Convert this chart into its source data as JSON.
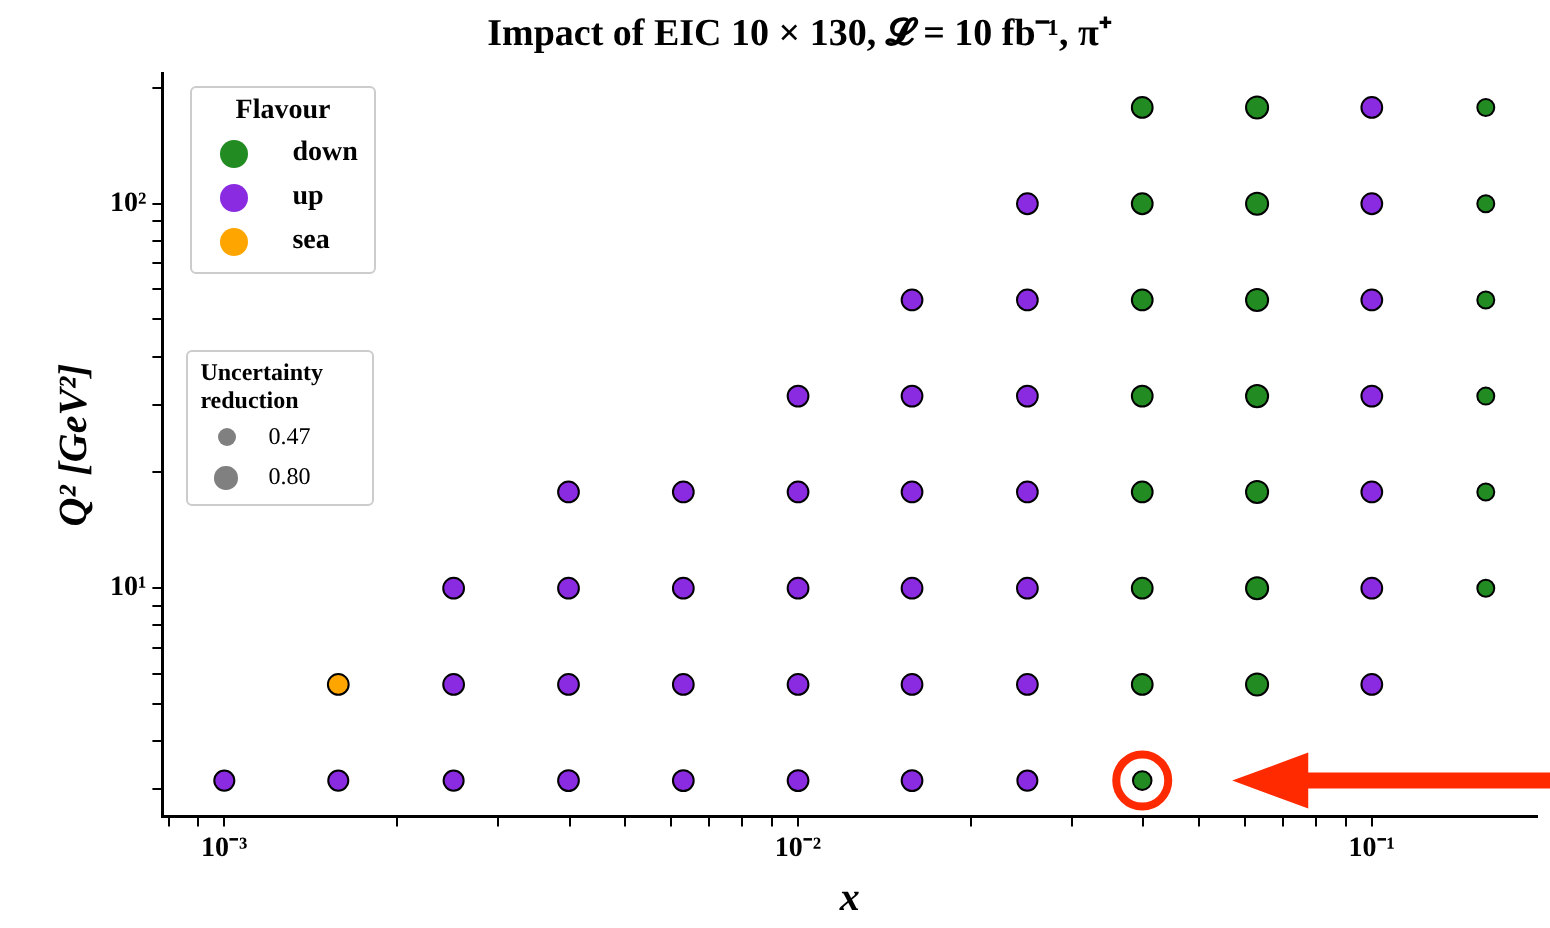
{
  "chart_data": {
    "type": "bubble",
    "title": "Impact of EIC 10 × 130, 𝓛 = 10 fb⁻¹, π⁺",
    "xlabel": "x",
    "ylabel": "Q² [GeV²]",
    "legend_title": "Flavour",
    "legend": "top left",
    "log": "xy",
    "annotations": [
      "Uncertainty reduction"
    ],
    "size_legend": [
      {
        "value": 0.47,
        "label": "0.47"
      },
      {
        "value": 0.8,
        "label": "0.80"
      }
    ],
    "xlim": [
      0.00078,
      0.194
    ],
    "ylim": [
      2.55,
      218
    ],
    "xticks": [
      {
        "value": 0.0008,
        "label": null
      },
      {
        "value": 0.0009,
        "label": null
      },
      {
        "value": 0.001,
        "label": "10⁻³"
      },
      {
        "value": 0.002,
        "label": null
      },
      {
        "value": 0.003,
        "label": null
      },
      {
        "value": 0.004,
        "label": null
      },
      {
        "value": 0.005,
        "label": null
      },
      {
        "value": 0.006,
        "label": null
      },
      {
        "value": 0.007,
        "label": null
      },
      {
        "value": 0.008,
        "label": null
      },
      {
        "value": 0.009,
        "label": null
      },
      {
        "value": 0.01,
        "label": "10⁻²"
      },
      {
        "value": 0.02,
        "label": null
      },
      {
        "value": 0.03,
        "label": null
      },
      {
        "value": 0.04,
        "label": null
      },
      {
        "value": 0.05,
        "label": null
      },
      {
        "value": 0.06,
        "label": null
      },
      {
        "value": 0.07,
        "label": null
      },
      {
        "value": 0.08,
        "label": null
      },
      {
        "value": 0.09,
        "label": null
      },
      {
        "value": 0.1,
        "label": "10⁻¹"
      }
    ],
    "yticks": [
      {
        "value": 3,
        "label": null
      },
      {
        "value": 4,
        "label": null
      },
      {
        "value": 5,
        "label": null
      },
      {
        "value": 6,
        "label": null
      },
      {
        "value": 7,
        "label": null
      },
      {
        "value": 8,
        "label": null
      },
      {
        "value": 9,
        "label": null
      },
      {
        "value": 10,
        "label": "10¹"
      },
      {
        "value": 20,
        "label": null
      },
      {
        "value": 30,
        "label": null
      },
      {
        "value": 40,
        "label": null
      },
      {
        "value": 50,
        "label": null
      },
      {
        "value": 60,
        "label": null
      },
      {
        "value": 70,
        "label": null
      },
      {
        "value": 80,
        "label": null
      },
      {
        "value": 90,
        "label": null
      },
      {
        "value": 100,
        "label": "10²"
      },
      {
        "value": 200,
        "label": null
      }
    ],
    "series": [
      {
        "name": "down",
        "color": "#228b22",
        "x": [
          0.0398,
          0.0398,
          0.0631,
          0.0398,
          0.0631,
          0.158,
          0.0398,
          0.0631,
          0.158,
          0.0398,
          0.0631,
          0.158,
          0.0398,
          0.0631,
          0.158,
          0.0398,
          0.0631,
          0.158,
          0.0398,
          0.0631,
          0.158
        ],
        "values": [
          3.16,
          5.62,
          5.62,
          10,
          10,
          10,
          17.8,
          17.8,
          17.8,
          31.6,
          31.6,
          31.6,
          56.2,
          56.2,
          56.2,
          100,
          100,
          100,
          178,
          178,
          178
        ],
        "sizes": [
          0.6,
          0.75,
          0.85,
          0.75,
          0.85,
          0.5,
          0.75,
          0.85,
          0.5,
          0.75,
          0.85,
          0.5,
          0.75,
          0.85,
          0.5,
          0.75,
          0.85,
          0.5,
          0.75,
          0.85,
          0.5
        ]
      },
      {
        "name": "up",
        "color": "#8a2be2",
        "x": [
          0.001,
          0.00158,
          0.00251,
          0.00398,
          0.00631,
          0.01,
          0.0158,
          0.0251,
          0.00251,
          0.00398,
          0.00631,
          0.01,
          0.0158,
          0.0251,
          0.1,
          0.00251,
          0.00398,
          0.00631,
          0.01,
          0.0158,
          0.0251,
          0.1,
          0.00398,
          0.00631,
          0.01,
          0.0158,
          0.0251,
          0.1,
          0.01,
          0.0158,
          0.0251,
          0.1,
          0.0158,
          0.0251,
          0.1,
          0.0251,
          0.1,
          0.1
        ],
        "values": [
          3.16,
          3.16,
          3.16,
          3.16,
          3.16,
          3.16,
          3.16,
          3.16,
          5.62,
          5.62,
          5.62,
          5.62,
          5.62,
          5.62,
          5.62,
          10,
          10,
          10,
          10,
          10,
          10,
          10,
          17.8,
          17.8,
          17.8,
          17.8,
          17.8,
          17.8,
          31.6,
          31.6,
          31.6,
          31.6,
          56.2,
          56.2,
          56.2,
          100,
          100,
          178
        ],
        "sizes": [
          0.7,
          0.7,
          0.7,
          0.75,
          0.75,
          0.75,
          0.75,
          0.7,
          0.75,
          0.75,
          0.75,
          0.75,
          0.75,
          0.75,
          0.75,
          0.75,
          0.75,
          0.75,
          0.75,
          0.75,
          0.75,
          0.75,
          0.75,
          0.75,
          0.75,
          0.75,
          0.75,
          0.75,
          0.75,
          0.75,
          0.75,
          0.75,
          0.75,
          0.75,
          0.75,
          0.75,
          0.75,
          0.75
        ]
      },
      {
        "name": "sea",
        "color": "#ffa500",
        "x": [
          0.00158
        ],
        "values": [
          5.62
        ],
        "sizes": [
          0.75
        ]
      }
    ]
  }
}
